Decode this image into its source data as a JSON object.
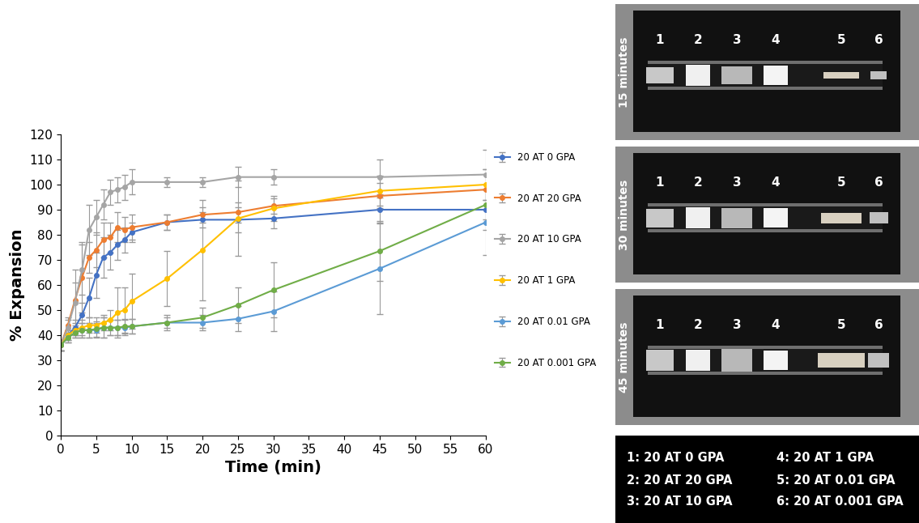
{
  "chart_data": {
    "type": "line",
    "x_label": "Time (min)",
    "y_label": "% Expansion",
    "x": [
      0,
      1,
      2,
      3,
      4,
      5,
      6,
      7,
      8,
      9,
      10,
      15,
      20,
      25,
      30,
      45,
      60
    ],
    "xlim": [
      0,
      60
    ],
    "xticks": [
      0,
      5,
      10,
      15,
      20,
      25,
      30,
      35,
      40,
      45,
      50,
      55,
      60
    ],
    "ylim": [
      0,
      120
    ],
    "yticks": [
      0,
      10,
      20,
      30,
      40,
      50,
      60,
      70,
      80,
      90,
      100,
      110,
      120
    ],
    "grid": false,
    "legend": "right",
    "marker": "circle",
    "series": [
      {
        "name": "20 AT 0 GPA",
        "color": "#4472c4",
        "values": [
          36,
          40,
          43,
          48,
          55,
          64,
          71,
          73,
          76,
          78,
          81,
          85,
          86,
          86,
          86.5,
          90,
          90
        ],
        "errors": [
          2,
          2,
          3,
          5,
          8,
          9,
          8,
          7,
          6,
          5,
          4,
          3,
          3,
          5,
          4,
          5,
          8
        ]
      },
      {
        "name": "20 AT 20 GPA",
        "color": "#ed7d31",
        "values": [
          36,
          44,
          54,
          63,
          71,
          74,
          78,
          79,
          83,
          82,
          83,
          85,
          88,
          89,
          91.5,
          95.5,
          98
        ],
        "errors": [
          2,
          3,
          12,
          14,
          6,
          7,
          7,
          6,
          6,
          5,
          5,
          3,
          3,
          4,
          3,
          5,
          8
        ]
      },
      {
        "name": "20 AT 10 GPA",
        "color": "#a5a5a5",
        "values": [
          36,
          43,
          53,
          66,
          82,
          87,
          92,
          97,
          98,
          99,
          101,
          101,
          101,
          103,
          103,
          103,
          104
        ],
        "errors": [
          2,
          3,
          8,
          10,
          10,
          7,
          6,
          5,
          5,
          5,
          5,
          2,
          2,
          4,
          3,
          7,
          10
        ]
      },
      {
        "name": "20 AT 1 GPA",
        "color": "#ffc000",
        "values": [
          36,
          40,
          42,
          43,
          44,
          44,
          45,
          46,
          49,
          50,
          53.5,
          62.5,
          74,
          86.5,
          90.5,
          97.5,
          100
        ],
        "errors": [
          2,
          2,
          2,
          3,
          3,
          3,
          3,
          4,
          10,
          9,
          11,
          11,
          20,
          15,
          5,
          6,
          6
        ]
      },
      {
        "name": "20 AT 0.01 GPA",
        "color": "#5b9bd5",
        "values": [
          36,
          39,
          41,
          42,
          42,
          42,
          43,
          43,
          43,
          43,
          43.5,
          45,
          45,
          46.5,
          49.5,
          66.5,
          85
        ],
        "errors": [
          2,
          2,
          2,
          3,
          3,
          3,
          4,
          3,
          3,
          3,
          3,
          2,
          3,
          5,
          8,
          18,
          13
        ]
      },
      {
        "name": "20 AT 0.001 GPA",
        "color": "#70ad47",
        "values": [
          36,
          39,
          41,
          42,
          42,
          42.5,
          43,
          43,
          43,
          43.5,
          43.5,
          45,
          47,
          52,
          58,
          73.5,
          92
        ],
        "errors": [
          2,
          2,
          2,
          3,
          3,
          3,
          4,
          3,
          3,
          3,
          3,
          3,
          4,
          7,
          11,
          12,
          6
        ]
      }
    ]
  },
  "photo_panel": {
    "panels": [
      {
        "time_label": "15 minutes",
        "sample_numbers": [
          "1",
          "2",
          "3",
          "4",
          "5",
          "6"
        ]
      },
      {
        "time_label": "30 minutes",
        "sample_numbers": [
          "1",
          "2",
          "3",
          "4",
          "5",
          "6"
        ]
      },
      {
        "time_label": "45 minutes",
        "sample_numbers": [
          "1",
          "2",
          "3",
          "4",
          "5",
          "6"
        ]
      }
    ],
    "key": [
      "1: 20 AT 0 GPA",
      "2: 20 AT 20 GPA",
      "3: 20 AT 10 GPA",
      "4: 20 AT 1 GPA",
      "5: 20 AT 0.01 GPA",
      "6: 20 AT 0.001 GPA"
    ]
  }
}
